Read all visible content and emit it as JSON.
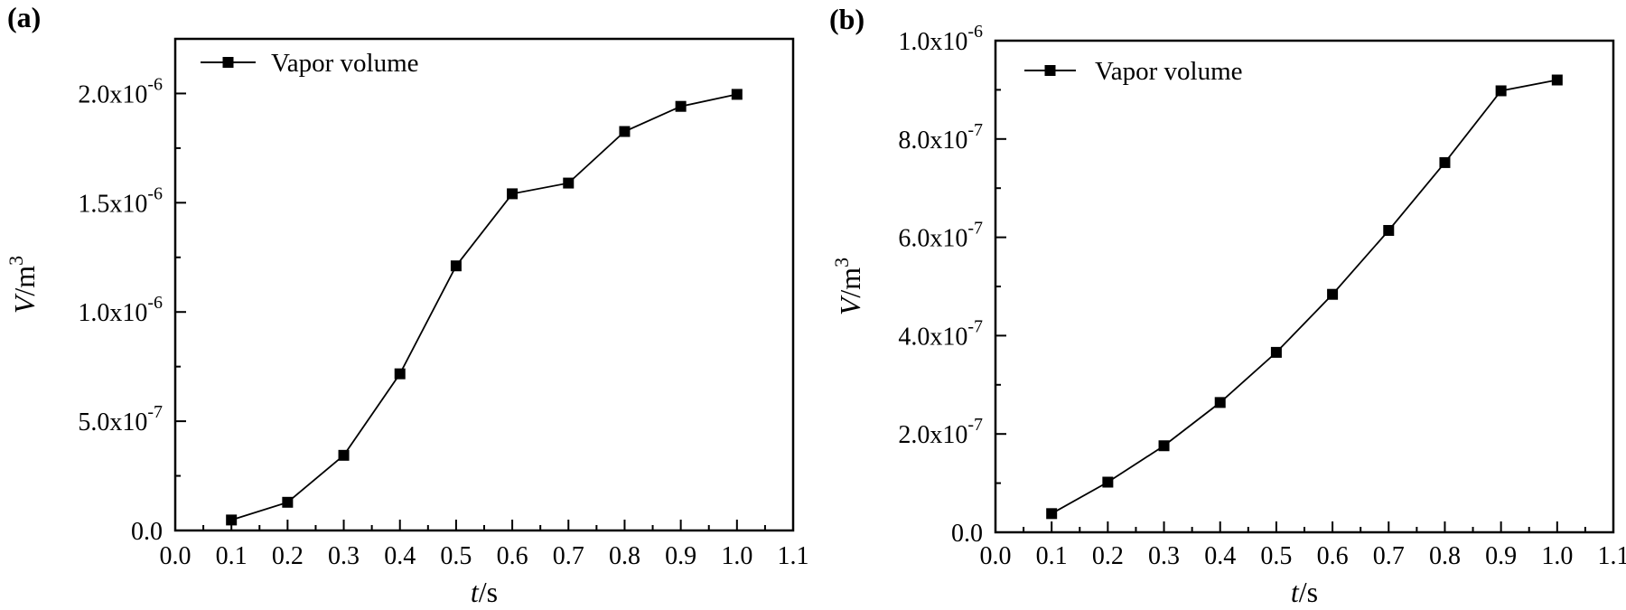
{
  "chart_data": [
    {
      "type": "line",
      "panel_label": "(a)",
      "xlabel_italic": "t",
      "xlabel_unit": "/s",
      "ylabel_italic": "V",
      "ylabel_unit": "/m",
      "ylabel_exp": "3",
      "xlim": [
        0.0,
        1.1
      ],
      "ylim": [
        0,
        2.25e-06
      ],
      "x_ticks": [
        "0.0",
        "0.1",
        "0.2",
        "0.3",
        "0.4",
        "0.5",
        "0.6",
        "0.7",
        "0.8",
        "0.9",
        "1.0",
        "1.1"
      ],
      "y_ticks": [
        {
          "value": 0,
          "base": "0.0",
          "exp": ""
        },
        {
          "value": 5e-07,
          "base": "5.0x10",
          "exp": "-7"
        },
        {
          "value": 1e-06,
          "base": "1.0x10",
          "exp": "-6"
        },
        {
          "value": 1.5e-06,
          "base": "1.5x10",
          "exp": "-6"
        },
        {
          "value": 2e-06,
          "base": "2.0x10",
          "exp": "-6"
        }
      ],
      "y_minor_step": 2.5e-07,
      "legend": "top-left",
      "series": [
        {
          "name": "Vapor volume",
          "marker": "square",
          "color": "#000000",
          "x": [
            0.1,
            0.2,
            0.3,
            0.4,
            0.5,
            0.6,
            0.7,
            0.8,
            0.9,
            1.0
          ],
          "y": [
            4.8e-08,
            1.29e-07,
            3.44e-07,
            7.17e-07,
            1.211e-06,
            1.541e-06,
            1.59e-06,
            1.826e-06,
            1.941e-06,
            1.996e-06
          ]
        }
      ]
    },
    {
      "type": "line",
      "panel_label": "(b)",
      "xlabel_italic": "t",
      "xlabel_unit": "/s",
      "ylabel_italic": "V",
      "ylabel_unit": "/m",
      "ylabel_exp": "3",
      "xlim": [
        0.0,
        1.1
      ],
      "ylim": [
        0,
        1e-06
      ],
      "x_ticks": [
        "0.0",
        "0.1",
        "0.2",
        "0.3",
        "0.4",
        "0.5",
        "0.6",
        "0.7",
        "0.8",
        "0.9",
        "1.0",
        "1.1"
      ],
      "y_ticks": [
        {
          "value": 0,
          "base": "0.0",
          "exp": ""
        },
        {
          "value": 2e-07,
          "base": "2.0x10",
          "exp": "-7"
        },
        {
          "value": 4e-07,
          "base": "4.0x10",
          "exp": "-7"
        },
        {
          "value": 6e-07,
          "base": "6.0x10",
          "exp": "-7"
        },
        {
          "value": 8e-07,
          "base": "8.0x10",
          "exp": "-7"
        },
        {
          "value": 1e-06,
          "base": "1.0x10",
          "exp": "-6"
        }
      ],
      "y_minor_step": 1e-07,
      "legend": "top-left",
      "series": [
        {
          "name": "Vapor volume",
          "marker": "square",
          "color": "#000000",
          "x": [
            0.1,
            0.2,
            0.3,
            0.4,
            0.5,
            0.6,
            0.7,
            0.8,
            0.9,
            1.0
          ],
          "y": [
            3.8e-08,
            1.02e-07,
            1.76e-07,
            2.64e-07,
            3.66e-07,
            4.84e-07,
            6.14e-07,
            7.52e-07,
            8.98e-07,
            9.2e-07
          ]
        }
      ]
    }
  ]
}
